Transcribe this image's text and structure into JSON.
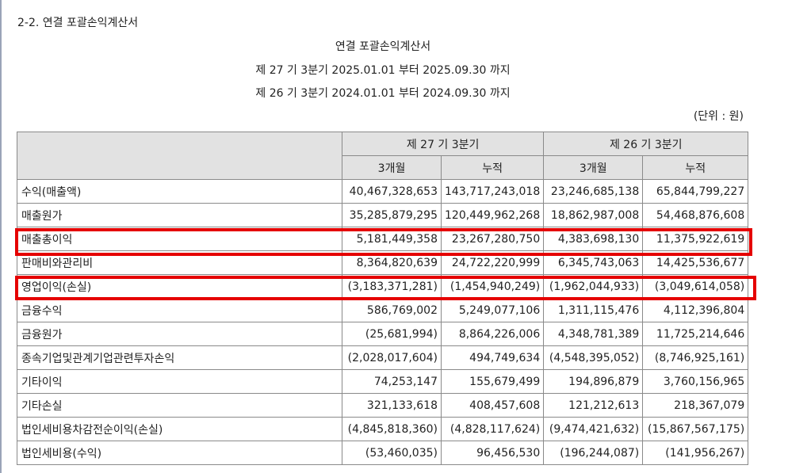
{
  "section_title": "2-2. 연결 포괄손익계산서",
  "doc": {
    "title": "연결 포괄손익계산서",
    "period_current": "제 27 기 3분기 2025.01.01 부터 2025.09.30 까지",
    "period_prior": "제 26 기 3분기 2024.01.01 부터 2024.09.30 까지",
    "unit": "(단위 : 원)"
  },
  "table": {
    "group_headers": [
      "제 27 기 3분기",
      "제 26 기 3분기"
    ],
    "sub_headers": [
      "3개월",
      "누적",
      "3개월",
      "누적"
    ],
    "rows": [
      {
        "label": "수익(매출액)",
        "values": [
          "40,467,328,653",
          "143,717,243,018",
          "23,246,685,138",
          "65,844,799,227"
        ]
      },
      {
        "label": "매출원가",
        "values": [
          "35,285,879,295",
          "120,449,962,268",
          "18,862,987,008",
          "54,468,876,608"
        ]
      },
      {
        "label": "매출총이익",
        "values": [
          "5,181,449,358",
          "23,267,280,750",
          "4,383,698,130",
          "11,375,922,619"
        ]
      },
      {
        "label": "판매비와관리비",
        "values": [
          "8,364,820,639",
          "24,722,220,999",
          "6,345,743,063",
          "14,425,536,677"
        ]
      },
      {
        "label": "영업이익(손실)",
        "values": [
          "(3,183,371,281)",
          "(1,454,940,249)",
          "(1,962,044,933)",
          "(3,049,614,058)"
        ]
      },
      {
        "label": "금융수익",
        "values": [
          "586,769,002",
          "5,249,077,106",
          "1,311,115,476",
          "4,112,396,804"
        ]
      },
      {
        "label": "금융원가",
        "values": [
          "(25,681,994)",
          "8,864,226,006",
          "4,348,781,389",
          "11,725,214,646"
        ]
      },
      {
        "label": "종속기업및관계기업관련투자손익",
        "values": [
          "(2,028,017,604)",
          "494,749,634",
          "(4,548,395,052)",
          "(8,746,925,161)"
        ]
      },
      {
        "label": "기타이익",
        "values": [
          "74,253,147",
          "155,679,499",
          "194,896,879",
          "3,760,156,965"
        ]
      },
      {
        "label": "기타손실",
        "values": [
          "321,133,618",
          "408,457,608",
          "121,212,613",
          "218,367,079"
        ]
      },
      {
        "label": "법인세비용차감전순이익(손실)",
        "values": [
          "(4,845,818,360)",
          "(4,828,117,624)",
          "(9,474,421,632)",
          "(15,867,567,175)"
        ]
      },
      {
        "label": "법인세비용(수익)",
        "values": [
          "(53,460,035)",
          "96,456,530",
          "(196,244,087)",
          "(141,956,267)"
        ]
      }
    ]
  }
}
